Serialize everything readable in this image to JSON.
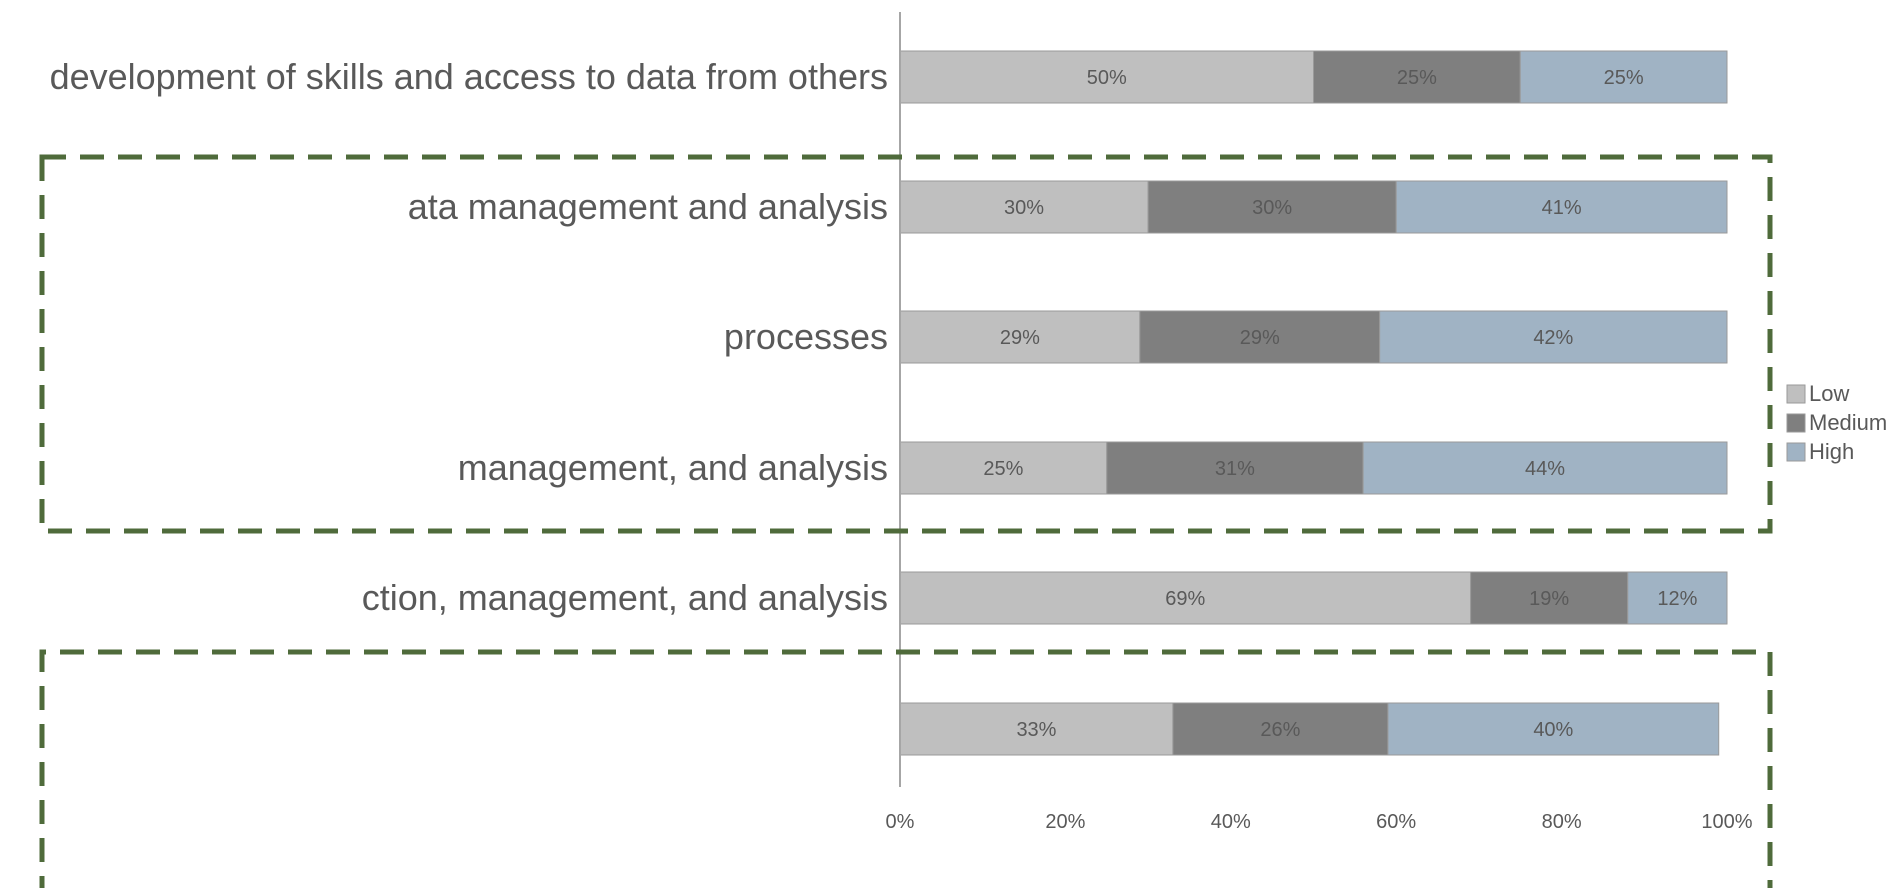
{
  "chart_data": {
    "type": "bar",
    "orientation": "horizontal",
    "stacked": true,
    "categories": [
      "development of skills and access to data from others",
      "ata management and analysis",
      "processes",
      "management, and analysis",
      "ction, management, and analysis",
      ""
    ],
    "series": [
      {
        "name": "Low",
        "color": "#bfbfbf",
        "values": [
          50,
          30,
          29,
          25,
          69,
          33
        ]
      },
      {
        "name": "Medium",
        "color": "#7f7f7f",
        "values": [
          25,
          30,
          29,
          31,
          19,
          26
        ]
      },
      {
        "name": "High",
        "color": "#a0b3c4",
        "values": [
          25,
          41,
          42,
          44,
          12,
          40
        ]
      }
    ],
    "xlim": [
      0,
      100
    ],
    "x_ticks": [
      "0%",
      "20%",
      "40%",
      "60%",
      "80%",
      "100%"
    ],
    "legend": [
      "Low",
      "Medium",
      "High"
    ],
    "legend_position": "right",
    "title": "",
    "xlabel": "",
    "ylabel": "",
    "grid": false,
    "annotations": [
      "dashed-green-box",
      "dashed-green-box"
    ],
    "annotation_color": "#4f6b3b"
  }
}
